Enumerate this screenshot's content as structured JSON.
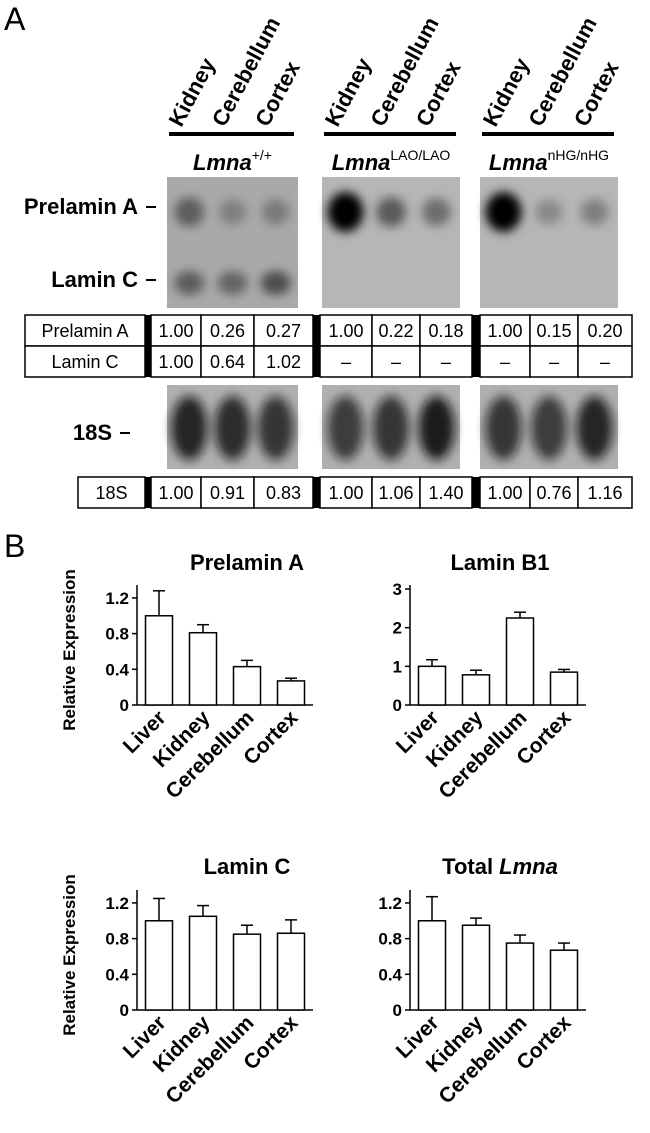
{
  "panel_a": {
    "label": "A",
    "groups": [
      {
        "lanes": [
          "Kidney",
          "Cerebellum",
          "Cortex"
        ],
        "gene": "Lmna",
        "genotype": "+/+"
      },
      {
        "lanes": [
          "Kidney",
          "Cerebellum",
          "Cortex"
        ],
        "gene": "Lmna",
        "genotype": "LAO/LAO"
      },
      {
        "lanes": [
          "Kidney",
          "Cerebellum",
          "Cortex"
        ],
        "gene": "Lmna",
        "genotype": "nHG/nHG"
      }
    ],
    "bands": [
      "Prelamin A",
      "Lamin C",
      "18S"
    ],
    "table1": {
      "rows": [
        [
          "Prelamin A",
          "1.00",
          "0.26",
          "0.27",
          "1.00",
          "0.22",
          "0.18",
          "1.00",
          "0.15",
          "0.20"
        ],
        [
          "Lamin C",
          "1.00",
          "0.64",
          "1.02",
          "–",
          "–",
          "–",
          "–",
          "–",
          "–"
        ]
      ]
    },
    "table2": {
      "rows": [
        [
          "18S",
          "1.00",
          "0.91",
          "0.83",
          "1.00",
          "1.06",
          "1.40",
          "1.00",
          "0.76",
          "1.16"
        ]
      ]
    }
  },
  "panel_b_label": "B",
  "chart_data": [
    {
      "type": "bar",
      "title": "Prelamin A",
      "ylabel": "Relative Expression",
      "categories": [
        "Liver",
        "Kidney",
        "Cerebellum",
        "Cortex"
      ],
      "values": [
        1.0,
        0.81,
        0.43,
        0.27
      ],
      "errors": [
        0.28,
        0.09,
        0.07,
        0.03
      ],
      "color": "#ffffff",
      "ylim": [
        0,
        1.3
      ],
      "yticks": [
        0,
        0.4,
        0.8,
        1.2
      ]
    },
    {
      "type": "bar",
      "title": "Lamin B1",
      "categories": [
        "Liver",
        "Kidney",
        "Cerebellum",
        "Cortex"
      ],
      "values": [
        1.0,
        0.78,
        2.25,
        0.85
      ],
      "errors": [
        0.17,
        0.12,
        0.15,
        0.07
      ],
      "color": "#ffffff",
      "ylim": [
        0,
        3
      ],
      "yticks": [
        0,
        1,
        2,
        3
      ]
    },
    {
      "type": "bar",
      "title": "Lamin C",
      "ylabel": "Relative Expression",
      "categories": [
        "Liver",
        "Kidney",
        "Cerebellum",
        "Cortex"
      ],
      "values": [
        1.0,
        1.05,
        0.85,
        0.86
      ],
      "errors": [
        0.25,
        0.12,
        0.1,
        0.15
      ],
      "color": "#ffffff",
      "ylim": [
        0,
        1.3
      ],
      "yticks": [
        0,
        0.4,
        0.8,
        1.2
      ]
    },
    {
      "type": "bar",
      "title": "Total Lmna",
      "categories": [
        "Liver",
        "Kidney",
        "Cerebellum",
        "Cortex"
      ],
      "values": [
        1.0,
        0.95,
        0.75,
        0.67
      ],
      "errors": [
        0.27,
        0.08,
        0.09,
        0.08
      ],
      "color": "#ffffff",
      "ylim": [
        0,
        1.3
      ],
      "yticks": [
        0,
        0.4,
        0.8,
        1.2
      ]
    }
  ]
}
